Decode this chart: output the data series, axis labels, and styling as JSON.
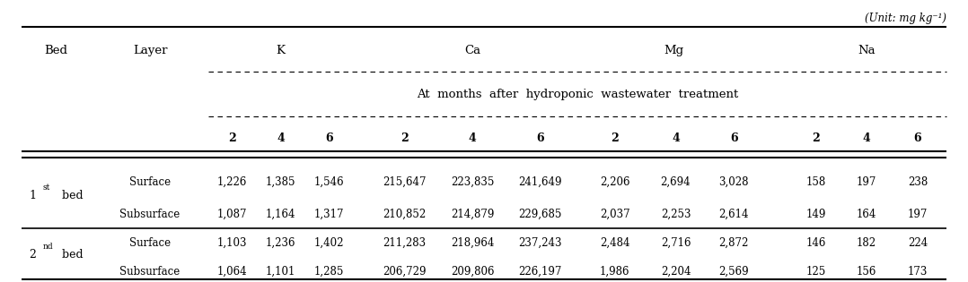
{
  "unit_text": "(Unit: mg kg⁻¹)",
  "col_groups": [
    "K",
    "Ca",
    "Mg",
    "Na"
  ],
  "subheader": "At  months  after  hydroponic  wastewater  treatment",
  "month_labels": [
    "2",
    "4",
    "6",
    "2",
    "4",
    "6",
    "2",
    "4",
    "6",
    "2",
    "4",
    "6"
  ],
  "data": [
    [
      "1,226",
      "1,385",
      "1,546",
      "215,647",
      "223,835",
      "241,649",
      "2,206",
      "2,694",
      "3,028",
      "158",
      "197",
      "238"
    ],
    [
      "1,087",
      "1,164",
      "1,317",
      "210,852",
      "214,879",
      "229,685",
      "2,037",
      "2,253",
      "2,614",
      "149",
      "164",
      "197"
    ],
    [
      "1,103",
      "1,236",
      "1,402",
      "211,283",
      "218,964",
      "237,243",
      "2,484",
      "2,716",
      "2,872",
      "146",
      "182",
      "224"
    ],
    [
      "1,064",
      "1,101",
      "1,285",
      "206,729",
      "209,806",
      "226,197",
      "1,986",
      "2,204",
      "2,569",
      "125",
      "156",
      "173"
    ]
  ],
  "bg_color": "white",
  "text_color": "black",
  "font_size": 8.5,
  "header_font_size": 9.5
}
